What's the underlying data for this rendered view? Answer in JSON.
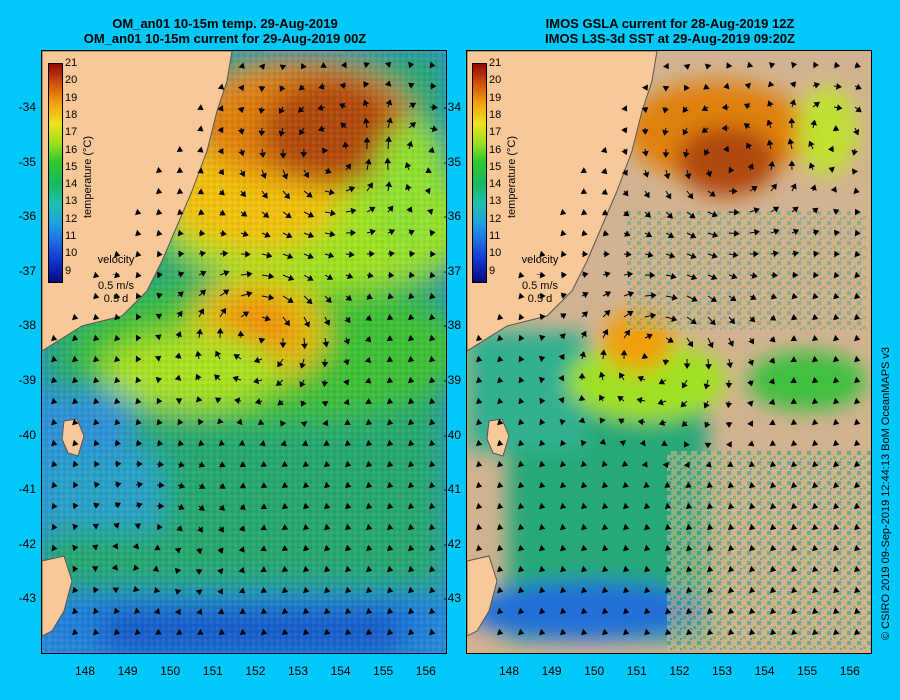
{
  "left": {
    "title1": "OM_an01 10-15m temp. 29-Aug-2019",
    "title2": "OM_an01 10-15m current for 29-Aug-2019 00Z"
  },
  "right": {
    "title1": "IMOS GSLA current for 28-Aug-2019 12Z",
    "title2": "IMOS L3S-3d SST at 29-Aug-2019 09:20Z"
  },
  "lat_labels": [
    "-34",
    "-35",
    "-36",
    "-37",
    "-38",
    "-39",
    "-40",
    "-41",
    "-42",
    "-43"
  ],
  "lon_labels": [
    "148",
    "149",
    "150",
    "151",
    "152",
    "153",
    "154",
    "155",
    "156"
  ],
  "colorbar": {
    "ticks": [
      "21",
      "20",
      "19",
      "18",
      "17",
      "16",
      "15",
      "14",
      "13",
      "12",
      "11",
      "10",
      "9"
    ],
    "unit": "temperature (°C)",
    "min": 9,
    "max": 21
  },
  "velocity": {
    "label": "velocity",
    "speed": "0.5 m/s",
    "time": "0.5 d"
  },
  "credit": "© CSIRO 2019   09-Sep-2019 12:44:13 BoM OceanMAPS v3",
  "colors": {
    "background": "#00c8f8",
    "land": "#f8c898",
    "no_data": "#d2b290",
    "warm": "#d05008",
    "cool": "#1e68e0"
  }
}
